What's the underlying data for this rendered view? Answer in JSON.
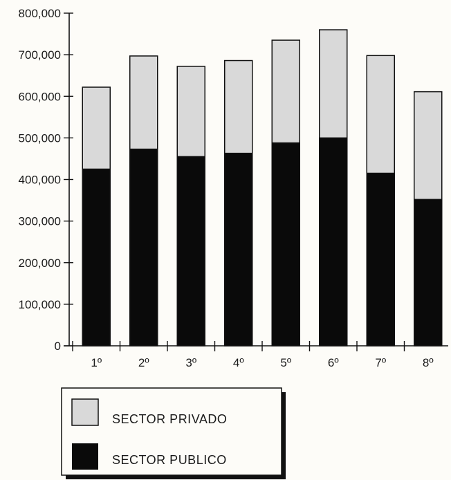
{
  "chart_data": {
    "type": "bar",
    "stacked": true,
    "categories": [
      "1º",
      "2º",
      "3º",
      "4º",
      "5º",
      "6º",
      "7º",
      "8º"
    ],
    "series": [
      {
        "name": "SECTOR PUBLICO",
        "color": "#0a0a0a",
        "values": [
          425000,
          473000,
          455000,
          463000,
          488000,
          500000,
          415000,
          352000
        ]
      },
      {
        "name": "SECTOR PRIVADO",
        "color": "#d9d9d9",
        "values": [
          197000,
          224000,
          217000,
          223000,
          247000,
          260000,
          283000,
          259000
        ]
      }
    ],
    "y_ticks": [
      "0",
      "100,000",
      "200,000",
      "300,000",
      "400,000",
      "500,000",
      "600,000",
      "700,000",
      "800,000"
    ],
    "ylim": [
      0,
      800000
    ],
    "legend_order": [
      "SECTOR PRIVADO",
      "SECTOR PUBLICO"
    ],
    "legend_position": "bottom-left",
    "grid": false
  }
}
